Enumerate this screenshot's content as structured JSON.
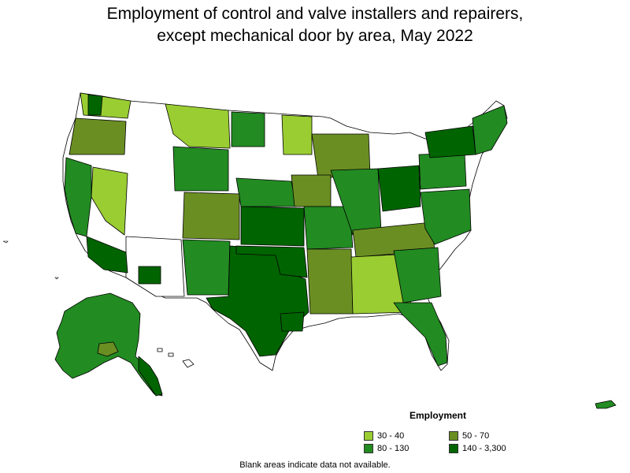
{
  "title": {
    "line1": "Employment of control and valve installers and repairers,",
    "line2": "except mechanical door by area, May 2022"
  },
  "legend": {
    "title": "Employment",
    "items": [
      {
        "label": "30 - 40",
        "color": "#9ACD32"
      },
      {
        "label": "50 - 70",
        "color": "#6B8E23"
      },
      {
        "label": "80 - 130",
        "color": "#228B22"
      },
      {
        "label": "140 - 3,300",
        "color": "#006400"
      }
    ]
  },
  "footnote": "Blank areas indicate data not available.",
  "colors": {
    "border": "#000000",
    "blank": "#ffffff"
  }
}
